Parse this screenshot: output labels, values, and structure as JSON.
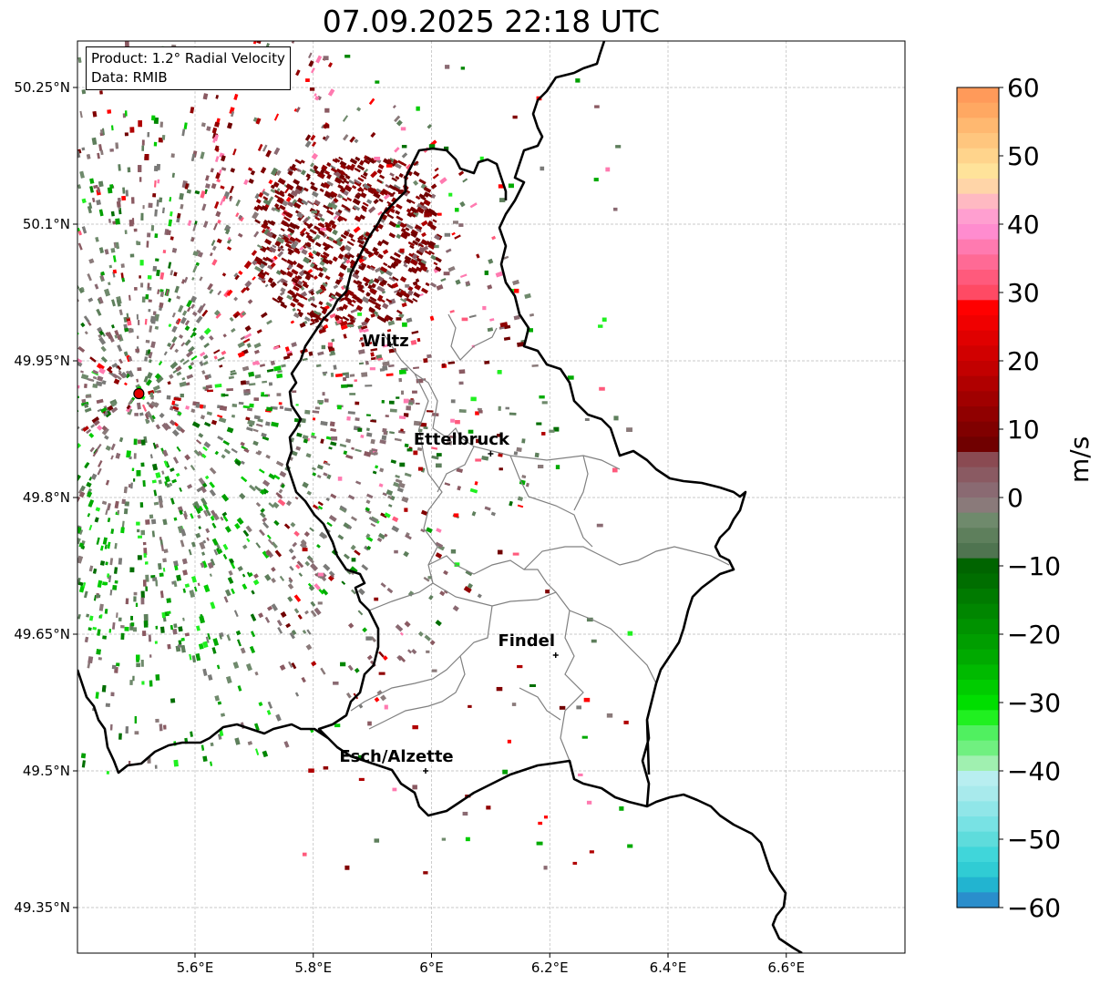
{
  "title": "07.09.2025 22:18 UTC",
  "info": {
    "product": "Product: 1.2° Radial Velocity",
    "data": "Data: RMIB"
  },
  "axes": {
    "lat_ticks": [
      "50.25°N",
      "50.1°N",
      "49.95°N",
      "49.8°N",
      "49.65°N",
      "49.5°N",
      "49.35°N"
    ],
    "lon_ticks": [
      "5.6°E",
      "5.8°E",
      "6°E",
      "6.2°E",
      "6.4°E",
      "6.6°E"
    ]
  },
  "places": [
    {
      "name": "Wiltz",
      "lat": 49.968,
      "lon": 5.93
    },
    {
      "name": "Ettelbruck",
      "lat": 49.848,
      "lon": 6.1
    },
    {
      "name": "Findel",
      "lat": 49.627,
      "lon": 6.21
    },
    {
      "name": "Esch/Alzette",
      "lat": 49.5,
      "lon": 5.99
    }
  ],
  "radar_site": {
    "lat": 49.914,
    "lon": 5.505
  },
  "colorbar": {
    "unit": "m/s",
    "tick_labels": [
      "60",
      "50",
      "40",
      "30",
      "20",
      "10",
      "0",
      "−10",
      "−20",
      "−30",
      "−40",
      "−50",
      "−60"
    ],
    "range": [
      -60,
      60
    ],
    "colors_top_to_bottom": [
      "#ff9a5a",
      "#ffa862",
      "#ffb870",
      "#ffc67e",
      "#ffd48c",
      "#ffe39a",
      "#ffd5a8",
      "#ffb9c2",
      "#ff9fd0",
      "#ff8ccf",
      "#ff7ab0",
      "#ff6a95",
      "#ff5a7c",
      "#ff4a64",
      "#ff0000",
      "#f00000",
      "#e00000",
      "#d10000",
      "#c20000",
      "#b00000",
      "#a00000",
      "#900000",
      "#800000",
      "#700000",
      "#8a4a52",
      "#8a5a62",
      "#8a6a72",
      "#8a7a7a",
      "#6f8a6c",
      "#5e7f5c",
      "#4f7450",
      "#006400",
      "#006e00",
      "#007a00",
      "#008600",
      "#009200",
      "#009e00",
      "#00aa00",
      "#00ba00",
      "#00cc00",
      "#00de00",
      "#20f020",
      "#50f060",
      "#70f080",
      "#a0f0b0",
      "#b8eef0",
      "#a8eaec",
      "#90e6e8",
      "#78e2e4",
      "#5edcdc",
      "#40d6da",
      "#30ccd4",
      "#22b4d0",
      "#2a8ecc"
    ]
  },
  "colors": {
    "border_national": "#000000",
    "border_canton": "#808080",
    "grid": "#b0b0b0",
    "radar_site": "#e00000"
  }
}
